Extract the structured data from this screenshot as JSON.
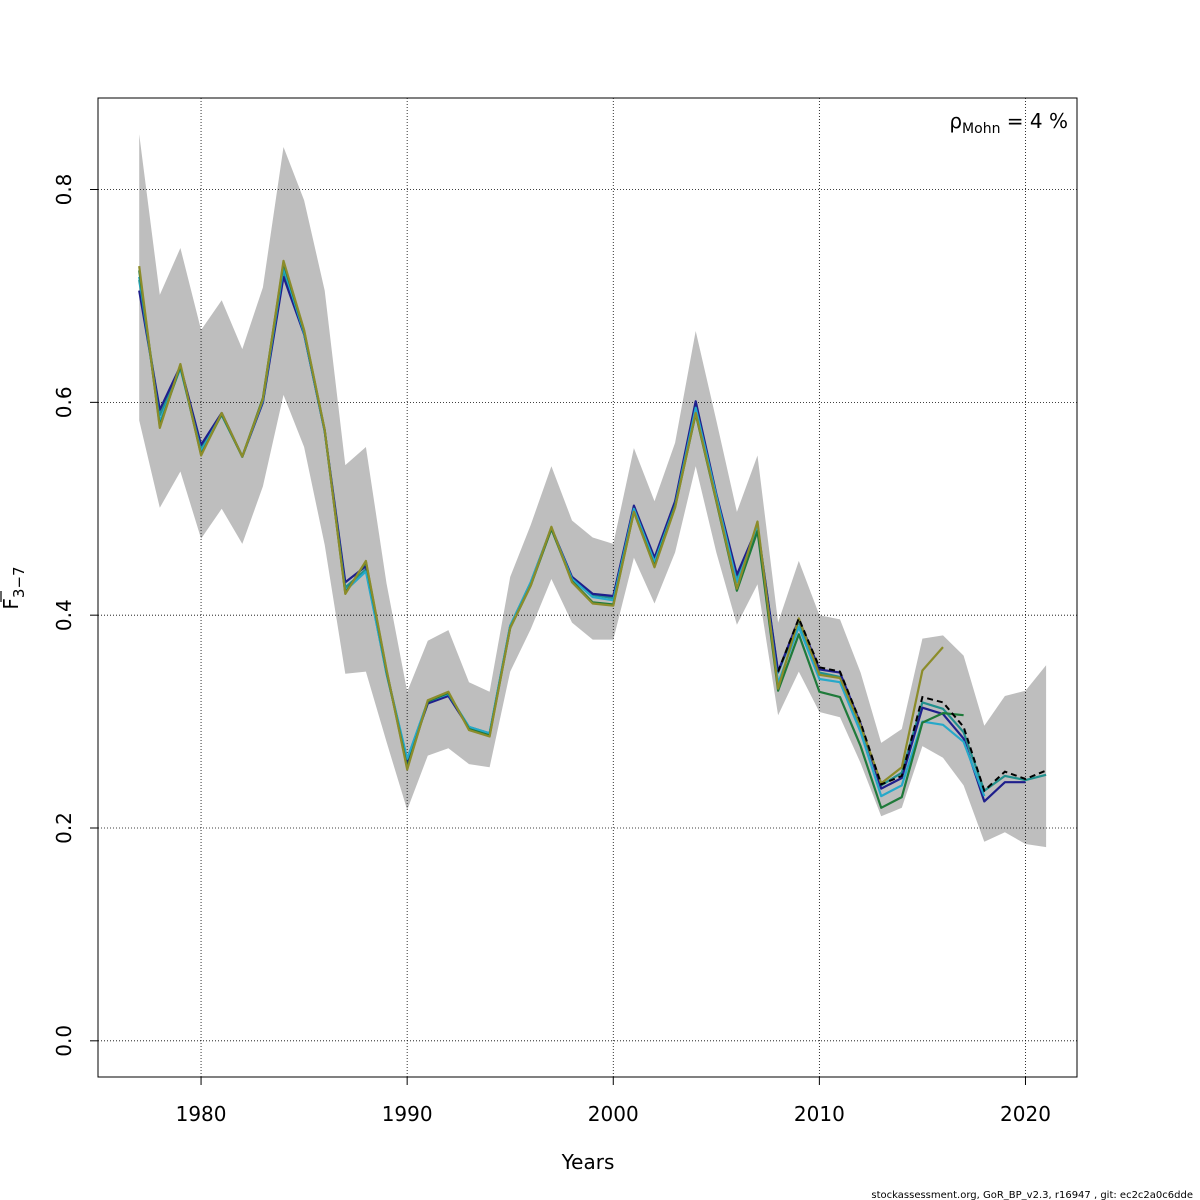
{
  "chart_data": {
    "type": "line",
    "xlabel": "Years",
    "ylabel": {
      "base": "F",
      "subscript": "3−7"
    },
    "xlim": [
      1975,
      2022.5
    ],
    "ylim": [
      -0.034,
      0.886
    ],
    "x_ticks": [
      1980,
      1990,
      2000,
      2010,
      2020
    ],
    "y_ticks": [
      0.0,
      0.2,
      0.4,
      0.6,
      0.8
    ],
    "y_tick_labels": [
      "0.0",
      "0.2",
      "0.4",
      "0.6",
      "0.8"
    ],
    "grid": true,
    "annotation": {
      "rho": "ρ",
      "subscript": "Mohn",
      "value": " = 4 %"
    },
    "footer": "stockassessment.org, GoR_BP_v2.3, r16947 , git: ec2c2a0c6dde",
    "confidence_band": {
      "x": [
        1977,
        1978,
        1979,
        1980,
        1981,
        1982,
        1983,
        1984,
        1985,
        1986,
        1987,
        1988,
        1989,
        1990,
        1991,
        1992,
        1993,
        1994,
        1995,
        1996,
        1997,
        1998,
        1999,
        2000,
        2001,
        2002,
        2003,
        2004,
        2005,
        2006,
        2007,
        2008,
        2009,
        2010,
        2011,
        2012,
        2013,
        2014,
        2015,
        2016,
        2017,
        2018,
        2019,
        2020,
        2021
      ],
      "upper": [
        0.852,
        0.701,
        0.745,
        0.668,
        0.696,
        0.65,
        0.708,
        0.84,
        0.79,
        0.705,
        0.541,
        0.558,
        0.43,
        0.328,
        0.376,
        0.386,
        0.337,
        0.328,
        0.436,
        0.485,
        0.54,
        0.489,
        0.473,
        0.467,
        0.557,
        0.507,
        0.562,
        0.667,
        0.583,
        0.497,
        0.55,
        0.393,
        0.451,
        0.4,
        0.396,
        0.346,
        0.28,
        0.293,
        0.378,
        0.381,
        0.362,
        0.296,
        0.324,
        0.329,
        0.353
      ],
      "lower": [
        0.583,
        0.501,
        0.535,
        0.472,
        0.5,
        0.467,
        0.521,
        0.607,
        0.558,
        0.466,
        0.345,
        0.347,
        0.281,
        0.217,
        0.268,
        0.275,
        0.26,
        0.257,
        0.347,
        0.387,
        0.434,
        0.393,
        0.377,
        0.377,
        0.454,
        0.411,
        0.459,
        0.54,
        0.459,
        0.391,
        0.429,
        0.306,
        0.347,
        0.309,
        0.304,
        0.261,
        0.211,
        0.219,
        0.277,
        0.266,
        0.24,
        0.187,
        0.196,
        0.185,
        0.182
      ]
    },
    "series": [
      {
        "color": "#21908d",
        "x": [
          1977,
          1978,
          1979,
          1980,
          1981,
          1982,
          1983,
          1984,
          1985,
          1986,
          1987,
          1988,
          1989,
          1990,
          1991,
          1992,
          1993,
          1994,
          1995,
          1996,
          1997,
          1998,
          1999,
          2000,
          2001,
          2002,
          2003,
          2004,
          2005,
          2006,
          2007,
          2008,
          2009,
          2010,
          2011,
          2012,
          2013,
          2014,
          2015,
          2016,
          2017,
          2018,
          2019,
          2020,
          2021
        ],
        "y": [
          0.715,
          0.588,
          0.633,
          0.557,
          0.588,
          0.549,
          0.601,
          0.724,
          0.665,
          0.573,
          0.426,
          0.443,
          0.345,
          0.264,
          0.319,
          0.325,
          0.295,
          0.289,
          0.39,
          0.431,
          0.482,
          0.435,
          0.419,
          0.416,
          0.5,
          0.452,
          0.504,
          0.597,
          0.513,
          0.434,
          0.484,
          0.346,
          0.394,
          0.346,
          0.342,
          0.295,
          0.24,
          0.252,
          0.318,
          0.312,
          0.29,
          0.235,
          0.249,
          0.245,
          0.25
        ]
      },
      {
        "color": "#1f1f8c",
        "x": [
          1977,
          1978,
          1979,
          1980,
          1981,
          1982,
          1983,
          1984,
          1985,
          1986,
          1987,
          1988,
          1989,
          1990,
          1991,
          1992,
          1993,
          1994,
          1995,
          1996,
          1997,
          1998,
          1999,
          2000,
          2001,
          2002,
          2003,
          2004,
          2005,
          2006,
          2007,
          2008,
          2009,
          2010,
          2011,
          2012,
          2013,
          2014,
          2015,
          2016,
          2017,
          2018,
          2019,
          2020
        ],
        "y": [
          0.705,
          0.593,
          0.634,
          0.56,
          0.59,
          0.549,
          0.6,
          0.718,
          0.664,
          0.573,
          0.431,
          0.446,
          0.347,
          0.262,
          0.317,
          0.324,
          0.294,
          0.288,
          0.389,
          0.43,
          0.482,
          0.436,
          0.42,
          0.418,
          0.503,
          0.454,
          0.507,
          0.601,
          0.514,
          0.438,
          0.483,
          0.347,
          0.396,
          0.349,
          0.346,
          0.298,
          0.237,
          0.247,
          0.313,
          0.307,
          0.284,
          0.225,
          0.243,
          0.243
        ]
      },
      {
        "color": "#26a8c9",
        "x": [
          1977,
          1978,
          1979,
          1980,
          1981,
          1982,
          1983,
          1984,
          1985,
          1986,
          1987,
          1988,
          1989,
          1990,
          1991,
          1992,
          1993,
          1994,
          1995,
          1996,
          1997,
          1998,
          1999,
          2000,
          2001,
          2002,
          2003,
          2004,
          2005,
          2006,
          2007,
          2008,
          2009,
          2010,
          2011,
          2012,
          2013,
          2014,
          2015,
          2016,
          2017,
          2018
        ],
        "y": [
          0.718,
          0.582,
          0.632,
          0.554,
          0.589,
          0.549,
          0.602,
          0.727,
          0.665,
          0.573,
          0.423,
          0.441,
          0.346,
          0.265,
          0.319,
          0.326,
          0.295,
          0.289,
          0.39,
          0.431,
          0.482,
          0.434,
          0.417,
          0.414,
          0.5,
          0.45,
          0.503,
          0.595,
          0.512,
          0.431,
          0.482,
          0.336,
          0.389,
          0.34,
          0.337,
          0.29,
          0.23,
          0.24,
          0.3,
          0.297,
          0.281,
          0.23
        ]
      },
      {
        "color": "#1f7a3a",
        "x": [
          1977,
          1978,
          1979,
          1980,
          1981,
          1982,
          1983,
          1984,
          1985,
          1986,
          1987,
          1988,
          1989,
          1990,
          1991,
          1992,
          1993,
          1994,
          1995,
          1996,
          1997,
          1998,
          1999,
          2000,
          2001,
          2002,
          2003,
          2004,
          2005,
          2006,
          2007,
          2008,
          2009,
          2010,
          2011,
          2012,
          2013,
          2014,
          2015,
          2016,
          2017
        ],
        "y": [
          0.724,
          0.578,
          0.634,
          0.551,
          0.589,
          0.549,
          0.604,
          0.731,
          0.667,
          0.574,
          0.421,
          0.45,
          0.348,
          0.257,
          0.319,
          0.327,
          0.293,
          0.287,
          0.388,
          0.428,
          0.481,
          0.432,
          0.412,
          0.41,
          0.497,
          0.446,
          0.502,
          0.589,
          0.507,
          0.423,
          0.479,
          0.329,
          0.382,
          0.328,
          0.323,
          0.277,
          0.219,
          0.229,
          0.299,
          0.308,
          0.306
        ]
      },
      {
        "color": "#8c8c2a",
        "x": [
          1977,
          1978,
          1979,
          1980,
          1981,
          1982,
          1983,
          1984,
          1985,
          1986,
          1987,
          1988,
          1989,
          1990,
          1991,
          1992,
          1993,
          1994,
          1995,
          1996,
          1997,
          1998,
          1999,
          2000,
          2001,
          2002,
          2003,
          2004,
          2005,
          2006,
          2007,
          2008,
          2009,
          2010,
          2011,
          2012,
          2013,
          2014,
          2015,
          2016
        ],
        "y": [
          0.728,
          0.576,
          0.636,
          0.55,
          0.59,
          0.549,
          0.603,
          0.733,
          0.668,
          0.574,
          0.42,
          0.451,
          0.349,
          0.255,
          0.32,
          0.328,
          0.292,
          0.286,
          0.388,
          0.428,
          0.483,
          0.431,
          0.411,
          0.409,
          0.497,
          0.445,
          0.501,
          0.59,
          0.508,
          0.425,
          0.488,
          0.331,
          0.397,
          0.344,
          0.341,
          0.296,
          0.242,
          0.257,
          0.348,
          0.37
        ]
      }
    ],
    "reference_series": {
      "color": "#000000",
      "dash": "6,4",
      "x": [
        2008,
        2009,
        2010,
        2011,
        2012,
        2013,
        2014,
        2015,
        2016,
        2017,
        2018,
        2019,
        2020,
        2021
      ],
      "y": [
        0.347,
        0.397,
        0.351,
        0.347,
        0.299,
        0.241,
        0.249,
        0.323,
        0.318,
        0.295,
        0.235,
        0.253,
        0.246,
        0.254
      ]
    }
  }
}
